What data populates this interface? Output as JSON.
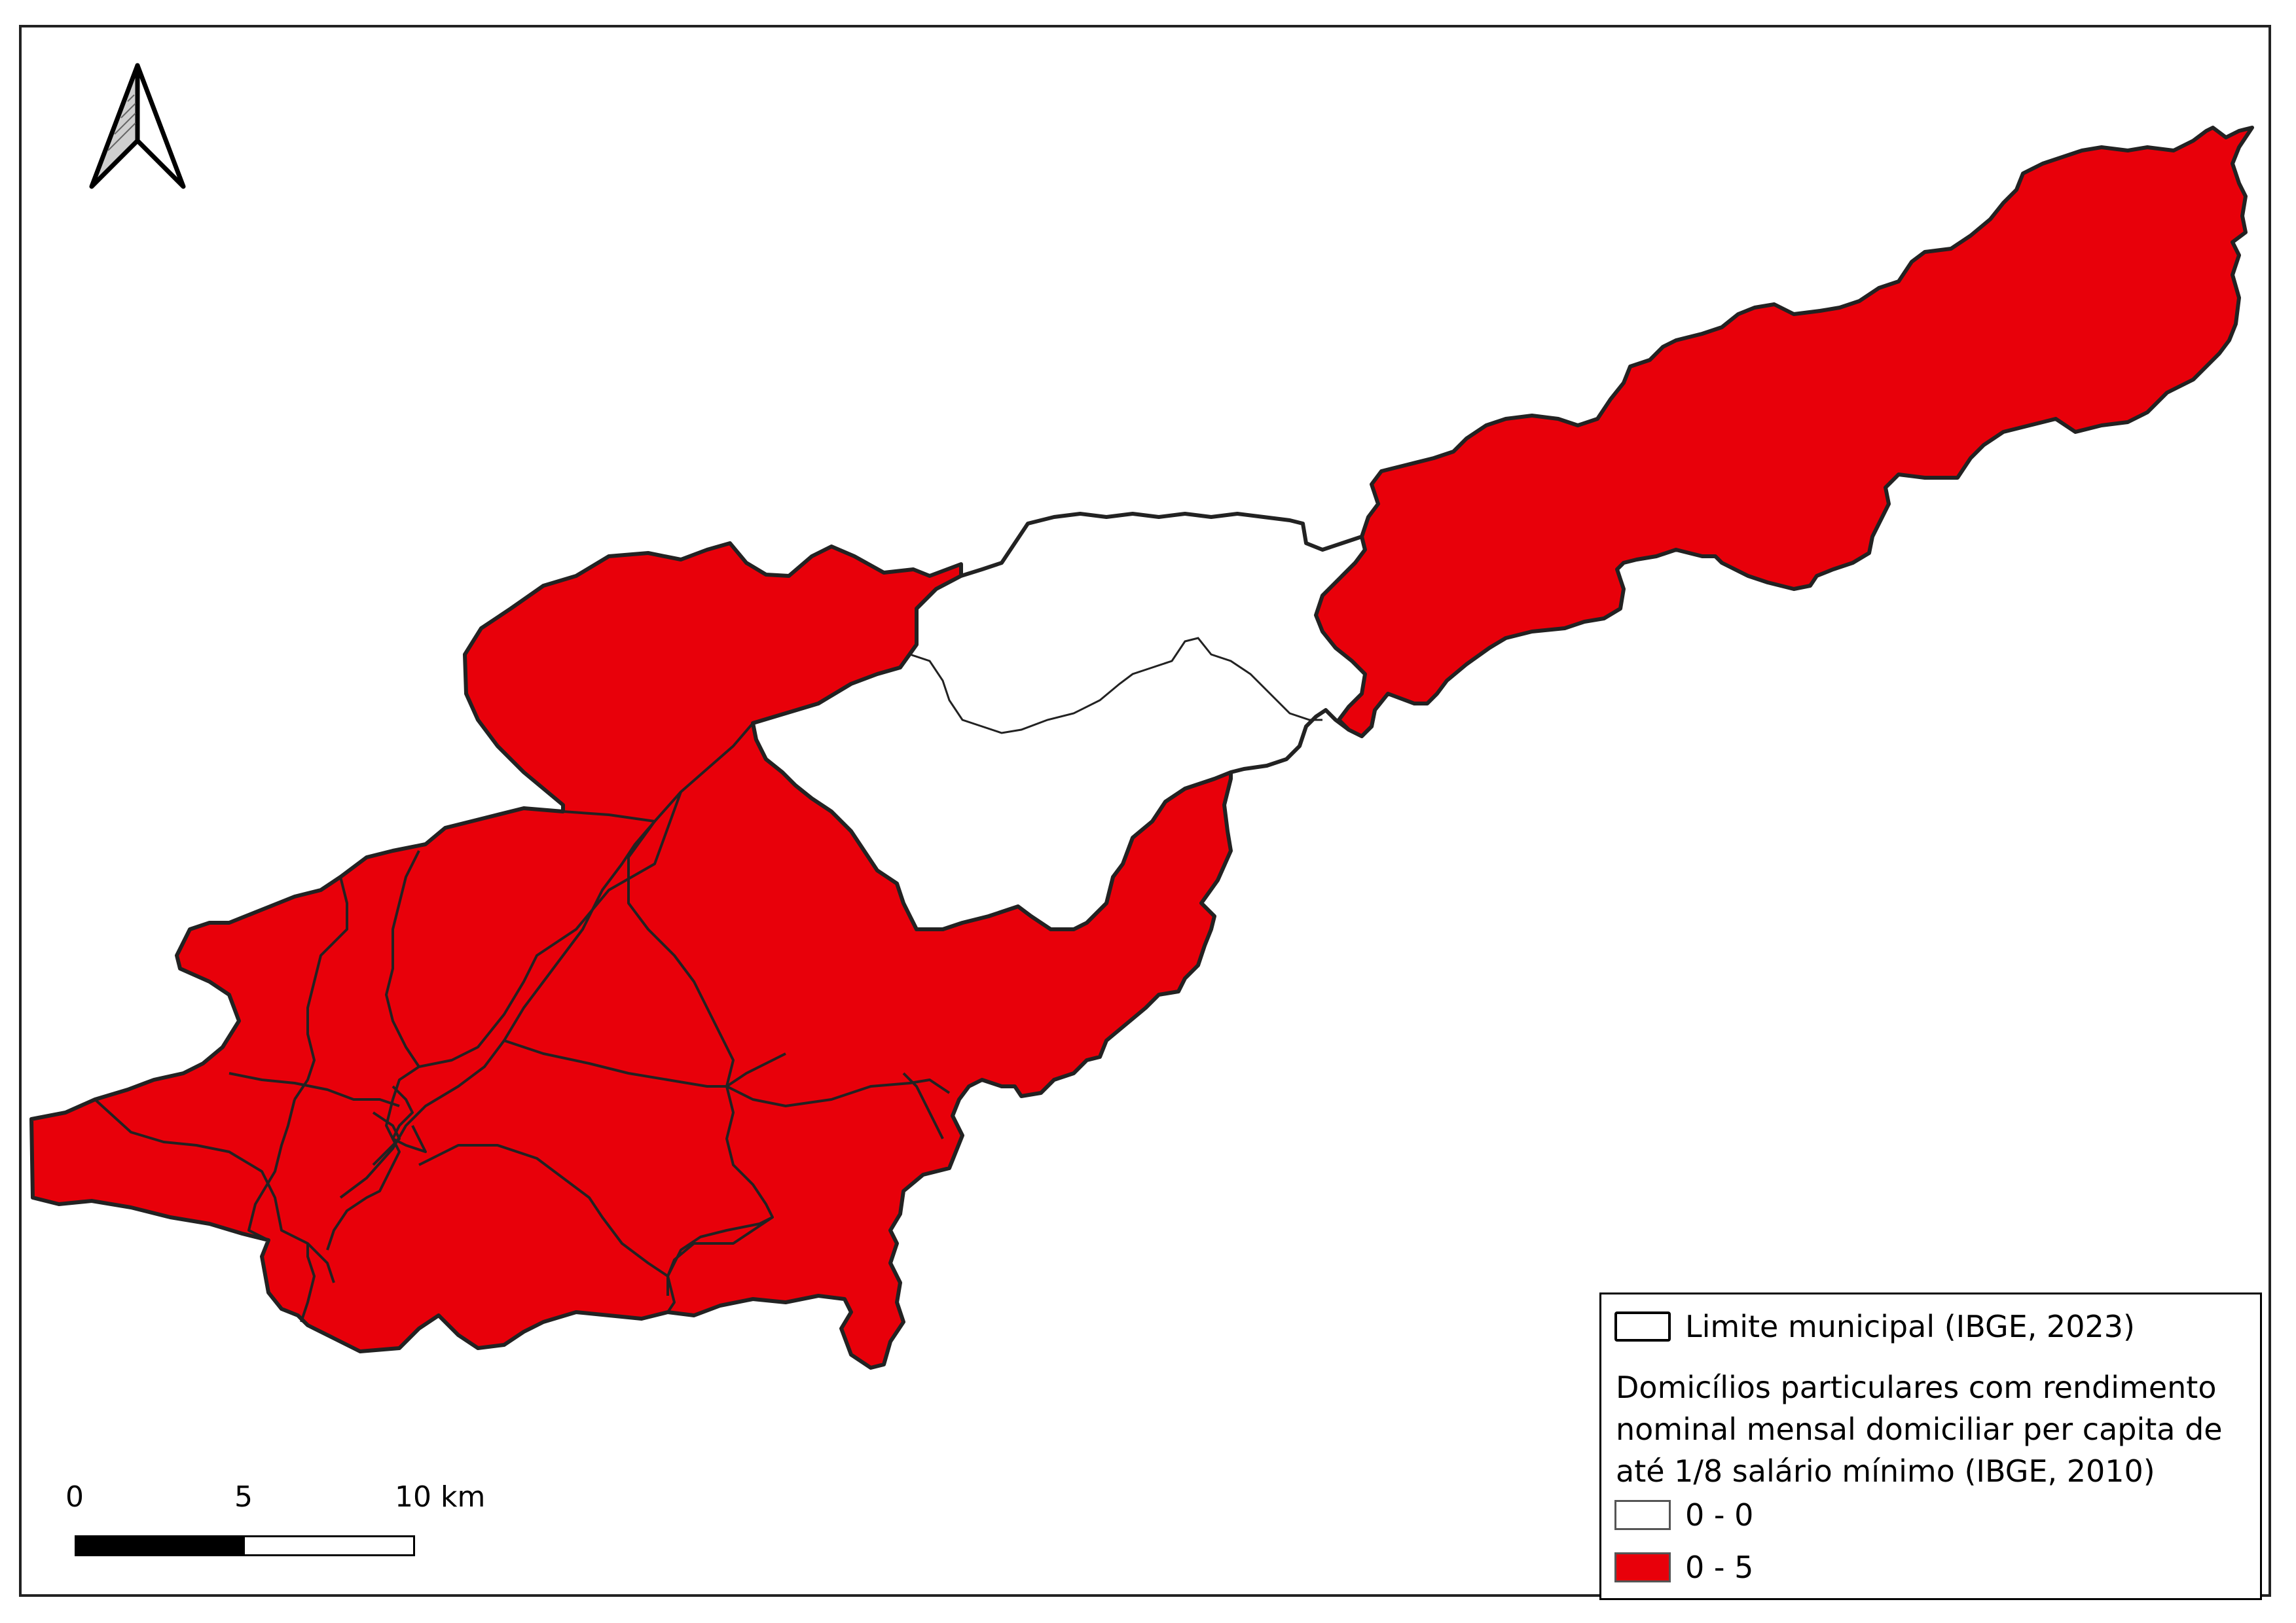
{
  "north_arrow": {
    "icon": "north-arrow-icon"
  },
  "scale": {
    "labels": [
      "0",
      "5",
      "10 km"
    ]
  },
  "legend": {
    "boundary_label": "Limite municipal (IBGE, 2023)",
    "title": "Domicílios particulares com rendimento nominal mensal domiciliar per capita de até 1/8 salário mínimo (IBGE, 2010)",
    "classes": [
      {
        "label": "0 - 0",
        "color": "#ffffff"
      },
      {
        "label": "0 - 5",
        "color": "#e8000a"
      }
    ]
  },
  "colors": {
    "fill": "#e8000a",
    "outline": "#222222"
  }
}
